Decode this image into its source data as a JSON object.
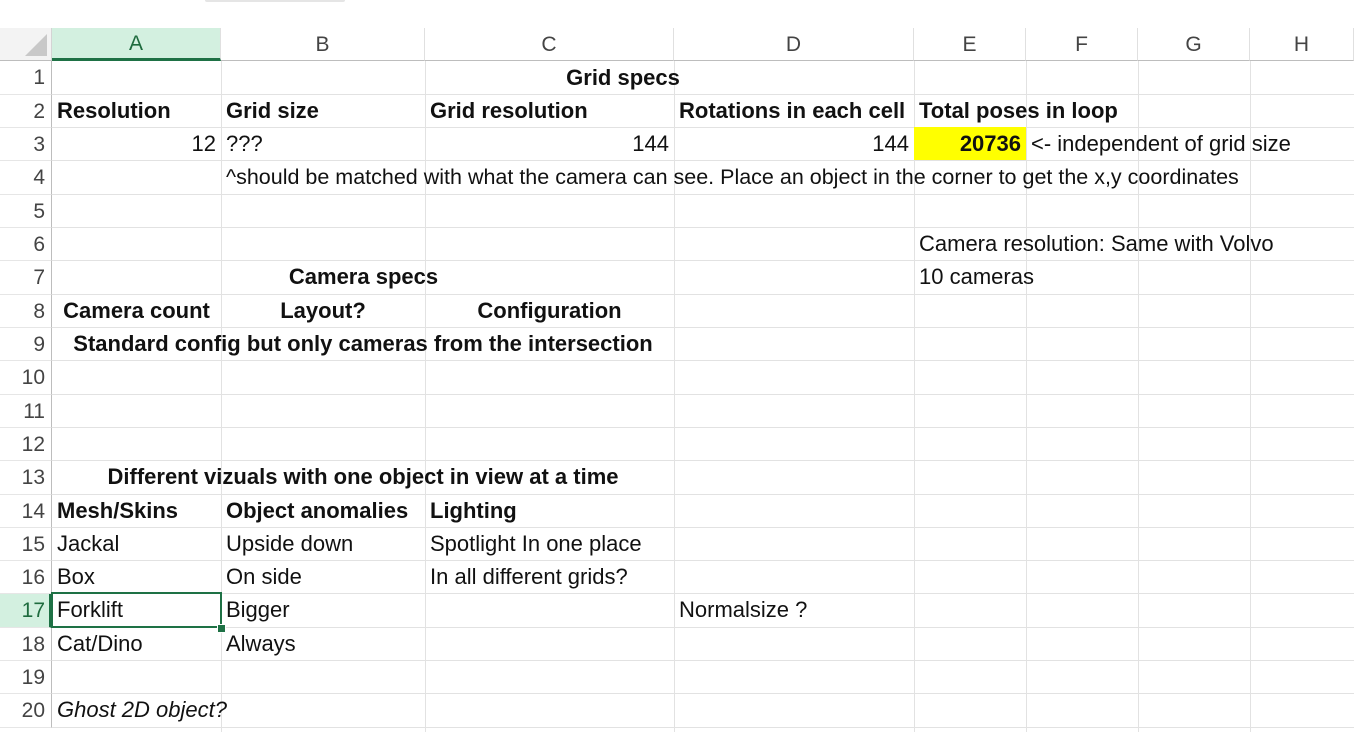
{
  "columns": [
    "A",
    "B",
    "C",
    "D",
    "E",
    "F",
    "G",
    "H"
  ],
  "rows": [
    "1",
    "2",
    "3",
    "4",
    "5",
    "6",
    "7",
    "8",
    "9",
    "10",
    "11",
    "12",
    "13",
    "14",
    "15",
    "16",
    "17",
    "18",
    "19",
    "20"
  ],
  "selected": {
    "column": "A",
    "row": "17"
  },
  "cells": {
    "C1": "Grid specs",
    "A2": "Resolution",
    "B2": "Grid size",
    "C2": "Grid resolution",
    "D2": "Rotations in each cell",
    "E2": "Total poses in loop",
    "A3": "12",
    "B3": "???",
    "C3": "144",
    "D3": "144",
    "E3": "20736",
    "F3": "<- independent of grid size",
    "B4": "^should be matched with what the camera can see. Place an object in the corner to get the x,y coordinates",
    "E6": "Camera resolution: Same with Volvo",
    "B7": "Camera specs",
    "E7": "10 cameras",
    "A8": "Camera count",
    "B8": "Layout?",
    "C8": "Configuration",
    "A9": "Standard config but only cameras from the intersection",
    "A13": "Different vizuals with one object in view at a time",
    "A14": "Mesh/Skins",
    "B14": "Object anomalies",
    "C14": "Lighting",
    "A15": "Jackal",
    "B15": "Upside down",
    "C15": "Spotlight In one place",
    "A16": "Box",
    "B16": "On side",
    "C16": "In all different grids?",
    "A17": "Forklift",
    "B17": "Bigger",
    "D17": "Normalsize ?",
    "A18": "Cat/Dino",
    "B18": "Always",
    "A20": "Ghost 2D object?"
  },
  "colors": {
    "highlight": "#ffff00",
    "selection": "#1e7145",
    "header_selected": "#d3f0e0"
  }
}
